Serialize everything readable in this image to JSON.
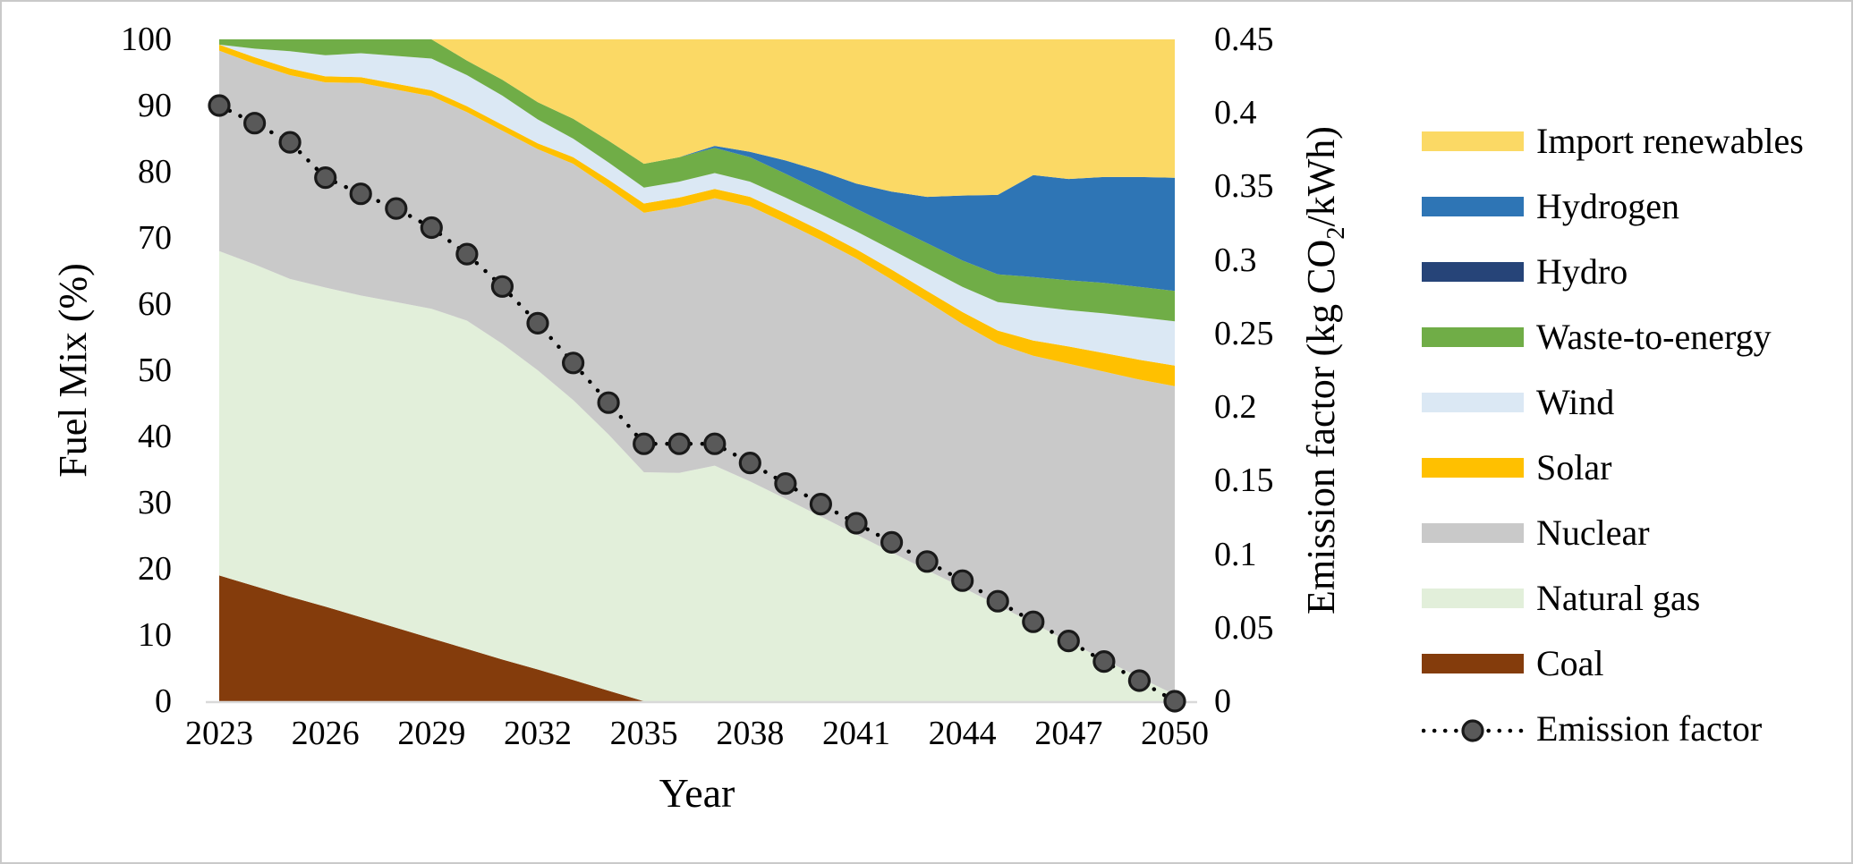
{
  "chart_data": {
    "type": "area",
    "stacked": true,
    "grid": false,
    "legend_position": "right",
    "x": [
      2023,
      2024,
      2025,
      2026,
      2027,
      2028,
      2029,
      2030,
      2031,
      2032,
      2033,
      2034,
      2035,
      2036,
      2037,
      2038,
      2039,
      2040,
      2041,
      2042,
      2043,
      2044,
      2045,
      2046,
      2047,
      2048,
      2049,
      2050
    ],
    "x_tick_labels": [
      "2023",
      "2026",
      "2029",
      "2032",
      "2035",
      "2038",
      "2041",
      "2044",
      "2047",
      "2050"
    ],
    "xlabel": "Year",
    "left_axis": {
      "label": "Fuel Mix (%)",
      "range": [
        0,
        100
      ],
      "ticks": [
        "0",
        "10",
        "20",
        "30",
        "40",
        "50",
        "60",
        "70",
        "80",
        "90",
        "100"
      ]
    },
    "right_axis": {
      "label_pre": "Emission factor (kg CO",
      "label_sub": "2",
      "label_post": "/kWh)",
      "range": [
        0,
        0.45
      ],
      "ticks": [
        "0",
        "0.05",
        "0.1",
        "0.15",
        "0.2",
        "0.25",
        "0.3",
        "0.35",
        "0.4",
        "0.45"
      ]
    },
    "series": [
      {
        "id": "coal",
        "name": "Coal",
        "color": "#843C0C",
        "values": [
          19,
          17.4,
          15.8,
          14.3,
          12.7,
          11.1,
          9.5,
          7.9,
          6.3,
          4.8,
          3.2,
          1.6,
          0,
          0,
          0,
          0,
          0,
          0,
          0,
          0,
          0,
          0,
          0,
          0,
          0,
          0,
          0,
          0
        ]
      },
      {
        "id": "natural-gas",
        "name": "Natural gas",
        "color": "#E2EFDA",
        "values": [
          49,
          48.6,
          48,
          48.2,
          48.6,
          49.2,
          49.8,
          49.6,
          47.7,
          45.2,
          42.3,
          38.7,
          34.6,
          34.5,
          35.6,
          33.2,
          30.6,
          27.9,
          25.2,
          22.5,
          19.8,
          17.2,
          14.5,
          11.8,
          9,
          6.3,
          3.6,
          1
        ]
      },
      {
        "id": "nuclear",
        "name": "Nuclear",
        "color": "#C9C9C9",
        "values": [
          30.3,
          30.3,
          30.8,
          31,
          32.1,
          32.1,
          32.1,
          31.5,
          32.2,
          33.4,
          35.7,
          37.3,
          39.2,
          40.2,
          40.4,
          41.6,
          41.7,
          41.8,
          41.7,
          41.2,
          40.6,
          39.8,
          39.5,
          40.4,
          42,
          43.5,
          45,
          46.6
        ]
      },
      {
        "id": "solar",
        "name": "Solar",
        "color": "#FFC000",
        "values": [
          0.9,
          1,
          1,
          0.9,
          0.9,
          0.9,
          0.9,
          0.9,
          0.9,
          0.9,
          1,
          1.2,
          1.4,
          1.4,
          1.4,
          1.4,
          1.4,
          1.4,
          1.4,
          1.5,
          1.6,
          1.8,
          2,
          2.3,
          2.6,
          2.8,
          3,
          3.1
        ]
      },
      {
        "id": "wind",
        "name": "Wind",
        "color": "#DBE8F4",
        "values": [
          0,
          1.3,
          2.6,
          3.2,
          3.6,
          4.2,
          4.8,
          4.7,
          4.4,
          3.6,
          2.8,
          2.6,
          2.4,
          2.4,
          2.4,
          2.3,
          2.4,
          2.5,
          2.7,
          3,
          3.4,
          3.8,
          4.3,
          5.2,
          5.5,
          6,
          6.4,
          6.7
        ]
      },
      {
        "id": "waste-to-energy",
        "name": "Waste-to-energy",
        "color": "#70AD47",
        "values": [
          0.8,
          1.4,
          1.8,
          2.4,
          2.1,
          2.5,
          2.9,
          2.2,
          2.4,
          2.6,
          3,
          3.3,
          3.6,
          3.7,
          3.8,
          3.7,
          3.6,
          3.5,
          3.4,
          3.6,
          3.8,
          4,
          4.2,
          4.4,
          4.5,
          4.6,
          4.6,
          4.6
        ]
      },
      {
        "id": "hydro",
        "name": "Hydro",
        "color": "#264478",
        "values": [
          0,
          0,
          0,
          0,
          0,
          0,
          0,
          0,
          0,
          0,
          0,
          0,
          0,
          0,
          0,
          0,
          0,
          0,
          0,
          0,
          0,
          0,
          0,
          0,
          0,
          0,
          0,
          0
        ]
      },
      {
        "id": "hydrogen",
        "name": "Hydrogen",
        "color": "#2E75B5",
        "values": [
          0,
          0,
          0,
          0,
          0,
          0,
          0,
          0,
          0,
          0,
          0,
          0,
          0,
          0,
          0.3,
          0.8,
          2,
          3,
          3.8,
          5.2,
          7,
          9.8,
          12,
          15.4,
          15.3,
          16,
          16.6,
          17.1
        ]
      },
      {
        "id": "import-renewables",
        "name": "Import renewables",
        "color": "#FBD965",
        "values": [
          0,
          0,
          0,
          0,
          0,
          0,
          0,
          3.2,
          6.1,
          9.5,
          12,
          15.3,
          18.8,
          17.8,
          16.1,
          17,
          18.3,
          19.9,
          21.8,
          23,
          23.8,
          23.6,
          23.5,
          20.5,
          21.1,
          20.8,
          20.8,
          20.9
        ]
      }
    ],
    "line_series": {
      "id": "emission-factor",
      "name": "Emission factor",
      "marker_fill": "#595959",
      "marker_stroke": "#1a1a1a",
      "line_color": "#000000",
      "values": [
        0.405,
        0.393,
        0.38,
        0.356,
        0.345,
        0.335,
        0.322,
        0.304,
        0.282,
        0.257,
        0.23,
        0.203,
        0.175,
        0.175,
        0.175,
        0.162,
        0.148,
        0.134,
        0.121,
        0.108,
        0.095,
        0.082,
        0.068,
        0.054,
        0.041,
        0.027,
        0.014,
        0
      ]
    }
  },
  "legend": {
    "items": [
      {
        "id": "import-renewables",
        "label": "Import renewables",
        "color": "#FBD965",
        "type": "swatch"
      },
      {
        "id": "hydrogen",
        "label": "Hydrogen",
        "color": "#2E75B5",
        "type": "swatch"
      },
      {
        "id": "hydro",
        "label": "Hydro",
        "color": "#264478",
        "type": "swatch"
      },
      {
        "id": "waste-to-energy",
        "label": "Waste-to-energy",
        "color": "#70AD47",
        "type": "swatch"
      },
      {
        "id": "wind",
        "label": "Wind",
        "color": "#DBE8F4",
        "type": "swatch"
      },
      {
        "id": "solar",
        "label": "Solar",
        "color": "#FFC000",
        "type": "swatch"
      },
      {
        "id": "nuclear",
        "label": "Nuclear",
        "color": "#C9C9C9",
        "type": "swatch"
      },
      {
        "id": "natural-gas",
        "label": "Natural gas",
        "color": "#E2EFDA",
        "type": "swatch"
      },
      {
        "id": "coal",
        "label": "Coal",
        "color": "#843C0C",
        "type": "swatch"
      },
      {
        "id": "emission-factor",
        "label": "Emission factor",
        "type": "line",
        "marker_fill": "#595959",
        "marker_stroke": "#1a1a1a",
        "line_color": "#000000"
      }
    ]
  },
  "axis_line_color": "#D9D9D9"
}
